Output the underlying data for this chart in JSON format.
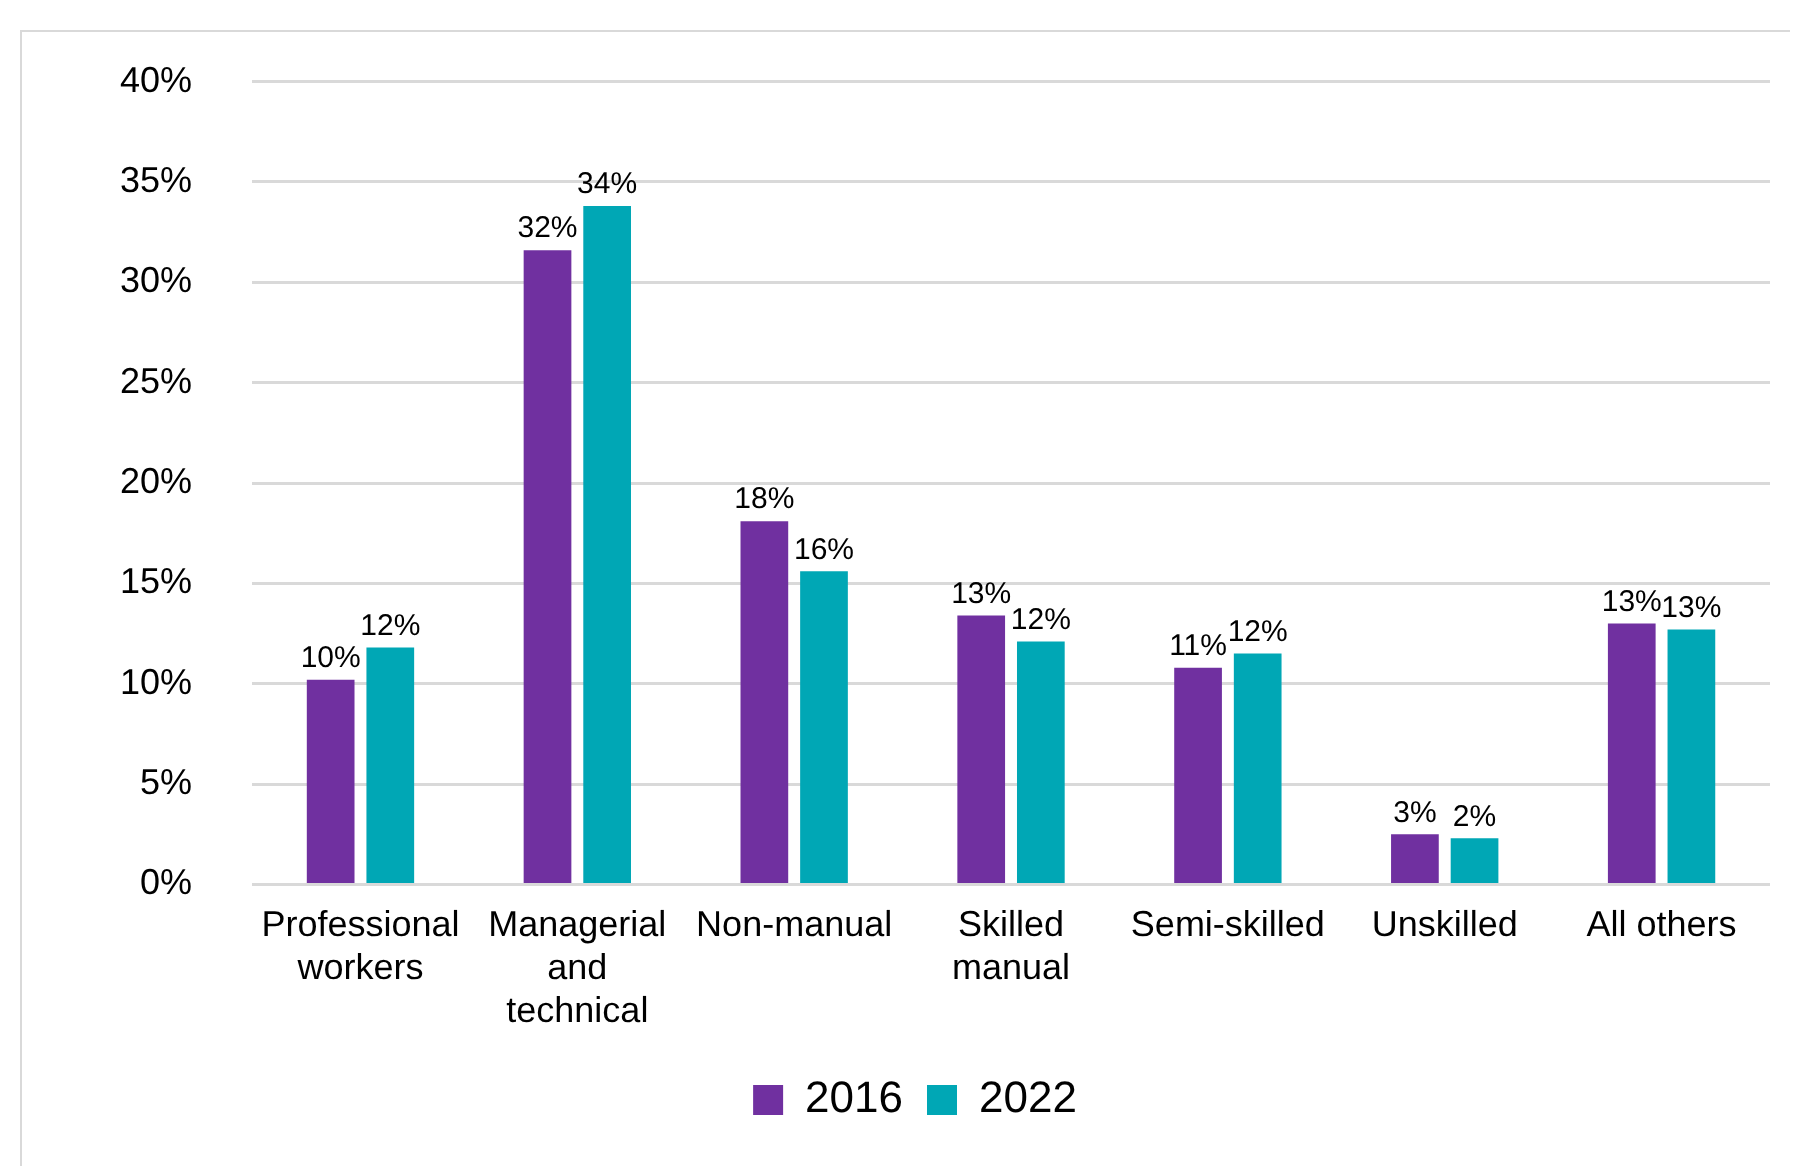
{
  "chart_data": {
    "type": "bar",
    "categories": [
      "Professional workers",
      "Managerial and technical",
      "Non-manual",
      "Skilled manual",
      "Semi-skilled",
      "Unskilled",
      "All others"
    ],
    "series": [
      {
        "name": "2016",
        "color": "#7030a0",
        "values": [
          10.2,
          31.6,
          18.1,
          13.4,
          10.8,
          2.5,
          13.0
        ],
        "value_labels": [
          "10%",
          "32%",
          "18%",
          "13%",
          "11%",
          "3%",
          "13%"
        ]
      },
      {
        "name": "2022",
        "color": "#00a7b5",
        "values": [
          11.8,
          33.8,
          15.6,
          12.1,
          11.5,
          2.3,
          12.7
        ],
        "value_labels": [
          "12%",
          "34%",
          "16%",
          "12%",
          "12%",
          "2%",
          "13%"
        ]
      }
    ],
    "ylim": [
      0,
      40
    ],
    "yticks": [
      {
        "value": 0,
        "label": "0%"
      },
      {
        "value": 5,
        "label": "5%"
      },
      {
        "value": 10,
        "label": "10%"
      },
      {
        "value": 15,
        "label": "15%"
      },
      {
        "value": 20,
        "label": "20%"
      },
      {
        "value": 25,
        "label": "25%"
      },
      {
        "value": 30,
        "label": "30%"
      },
      {
        "value": 35,
        "label": "35%"
      },
      {
        "value": 40,
        "label": "40%"
      }
    ],
    "grid": "y",
    "legend": "bottom"
  }
}
